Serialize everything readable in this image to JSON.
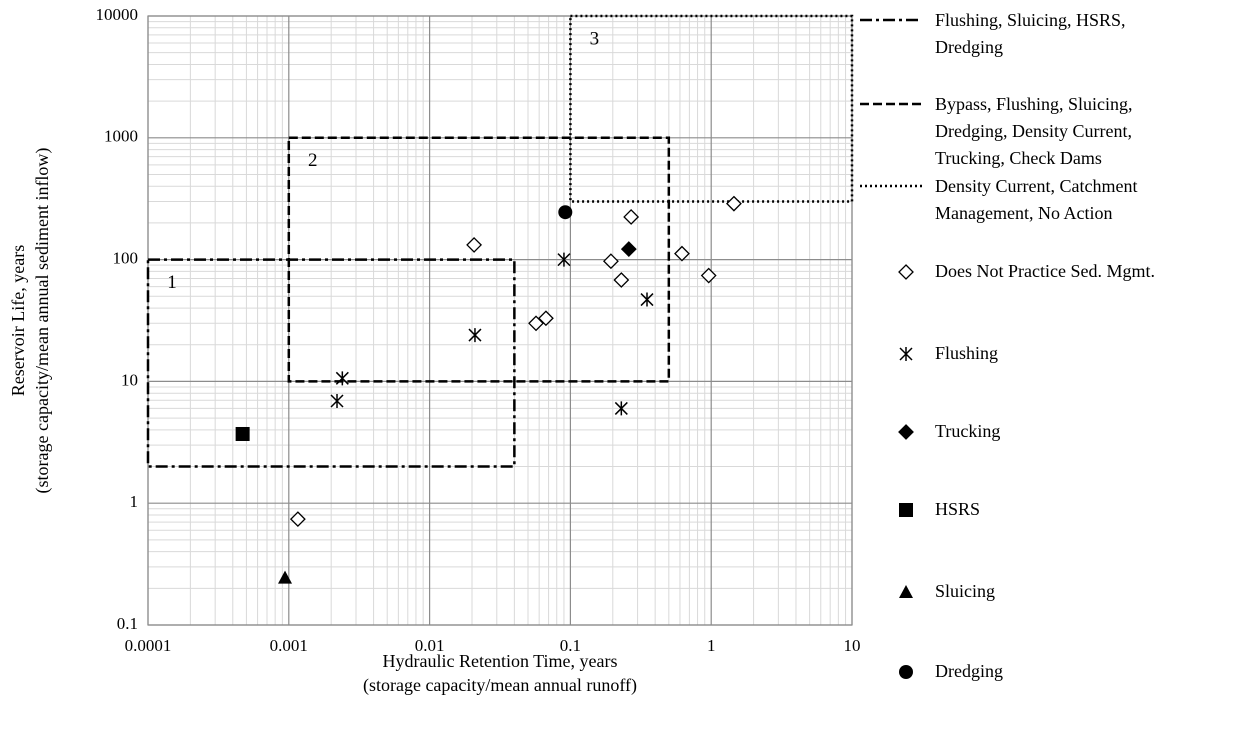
{
  "chart_data": {
    "type": "scatter",
    "log_x": true,
    "log_y": true,
    "grid": true,
    "x_label": [
      "Hydraulic Retention Time, years",
      "(storage capacity/mean annual runoff)"
    ],
    "y_label": [
      "Reservoir Life, years",
      "(storage capacity/mean annual sediment inflow)"
    ],
    "xlim": [
      0.0001,
      10
    ],
    "ylim": [
      0.1,
      10000
    ],
    "xticks": [
      0.0001,
      0.001,
      0.01,
      0.1,
      1,
      10
    ],
    "yticks": [
      0.1,
      1,
      10,
      100,
      1000,
      10000
    ],
    "regions": [
      {
        "label": "1",
        "name": "Flushing, Sluicing, HSRS, Dredging",
        "style": "dashdot",
        "x": [
          0.0001,
          0.04
        ],
        "y": [
          2,
          100
        ]
      },
      {
        "label": "2",
        "name": "Bypass, Flushing, Sluicing, Dredging, Density Current, Trucking, Check Dams",
        "style": "dashed",
        "x": [
          0.001,
          0.5
        ],
        "y": [
          10,
          1000
        ]
      },
      {
        "label": "3",
        "name": "Density Current, Catchment Management, No Action",
        "style": "dotted",
        "x": [
          0.1,
          10
        ],
        "y": [
          300,
          10000
        ]
      }
    ],
    "series": [
      {
        "name": "Does Not Practice Sed. Mgmt.",
        "marker": "diamond-open",
        "color": "#000000",
        "x": [
          0.00116,
          0.0207,
          0.057,
          0.067,
          0.194,
          0.23,
          0.27,
          0.62,
          0.96,
          1.45
        ],
        "values": [
          0.74,
          132,
          30,
          33,
          97,
          68,
          224,
          112,
          74,
          288
        ]
      },
      {
        "name": "Flushing",
        "marker": "asterisk",
        "color": "#000000",
        "x": [
          0.0022,
          0.0024,
          0.021,
          0.09,
          0.23,
          0.35
        ],
        "values": [
          6.9,
          10.6,
          24,
          100,
          6,
          47
        ]
      },
      {
        "name": "Trucking",
        "marker": "diamond",
        "color": "#000000",
        "x": [
          0.26
        ],
        "values": [
          122
        ]
      },
      {
        "name": "HSRS",
        "marker": "square",
        "color": "#000000",
        "x": [
          0.00047
        ],
        "values": [
          3.7
        ]
      },
      {
        "name": "Sluicing",
        "marker": "triangle",
        "color": "#000000",
        "x": [
          0.00094
        ],
        "values": [
          0.245
        ]
      },
      {
        "name": "Dredging",
        "marker": "circle",
        "color": "#000000",
        "x": [
          0.092
        ],
        "values": [
          245
        ]
      }
    ]
  }
}
